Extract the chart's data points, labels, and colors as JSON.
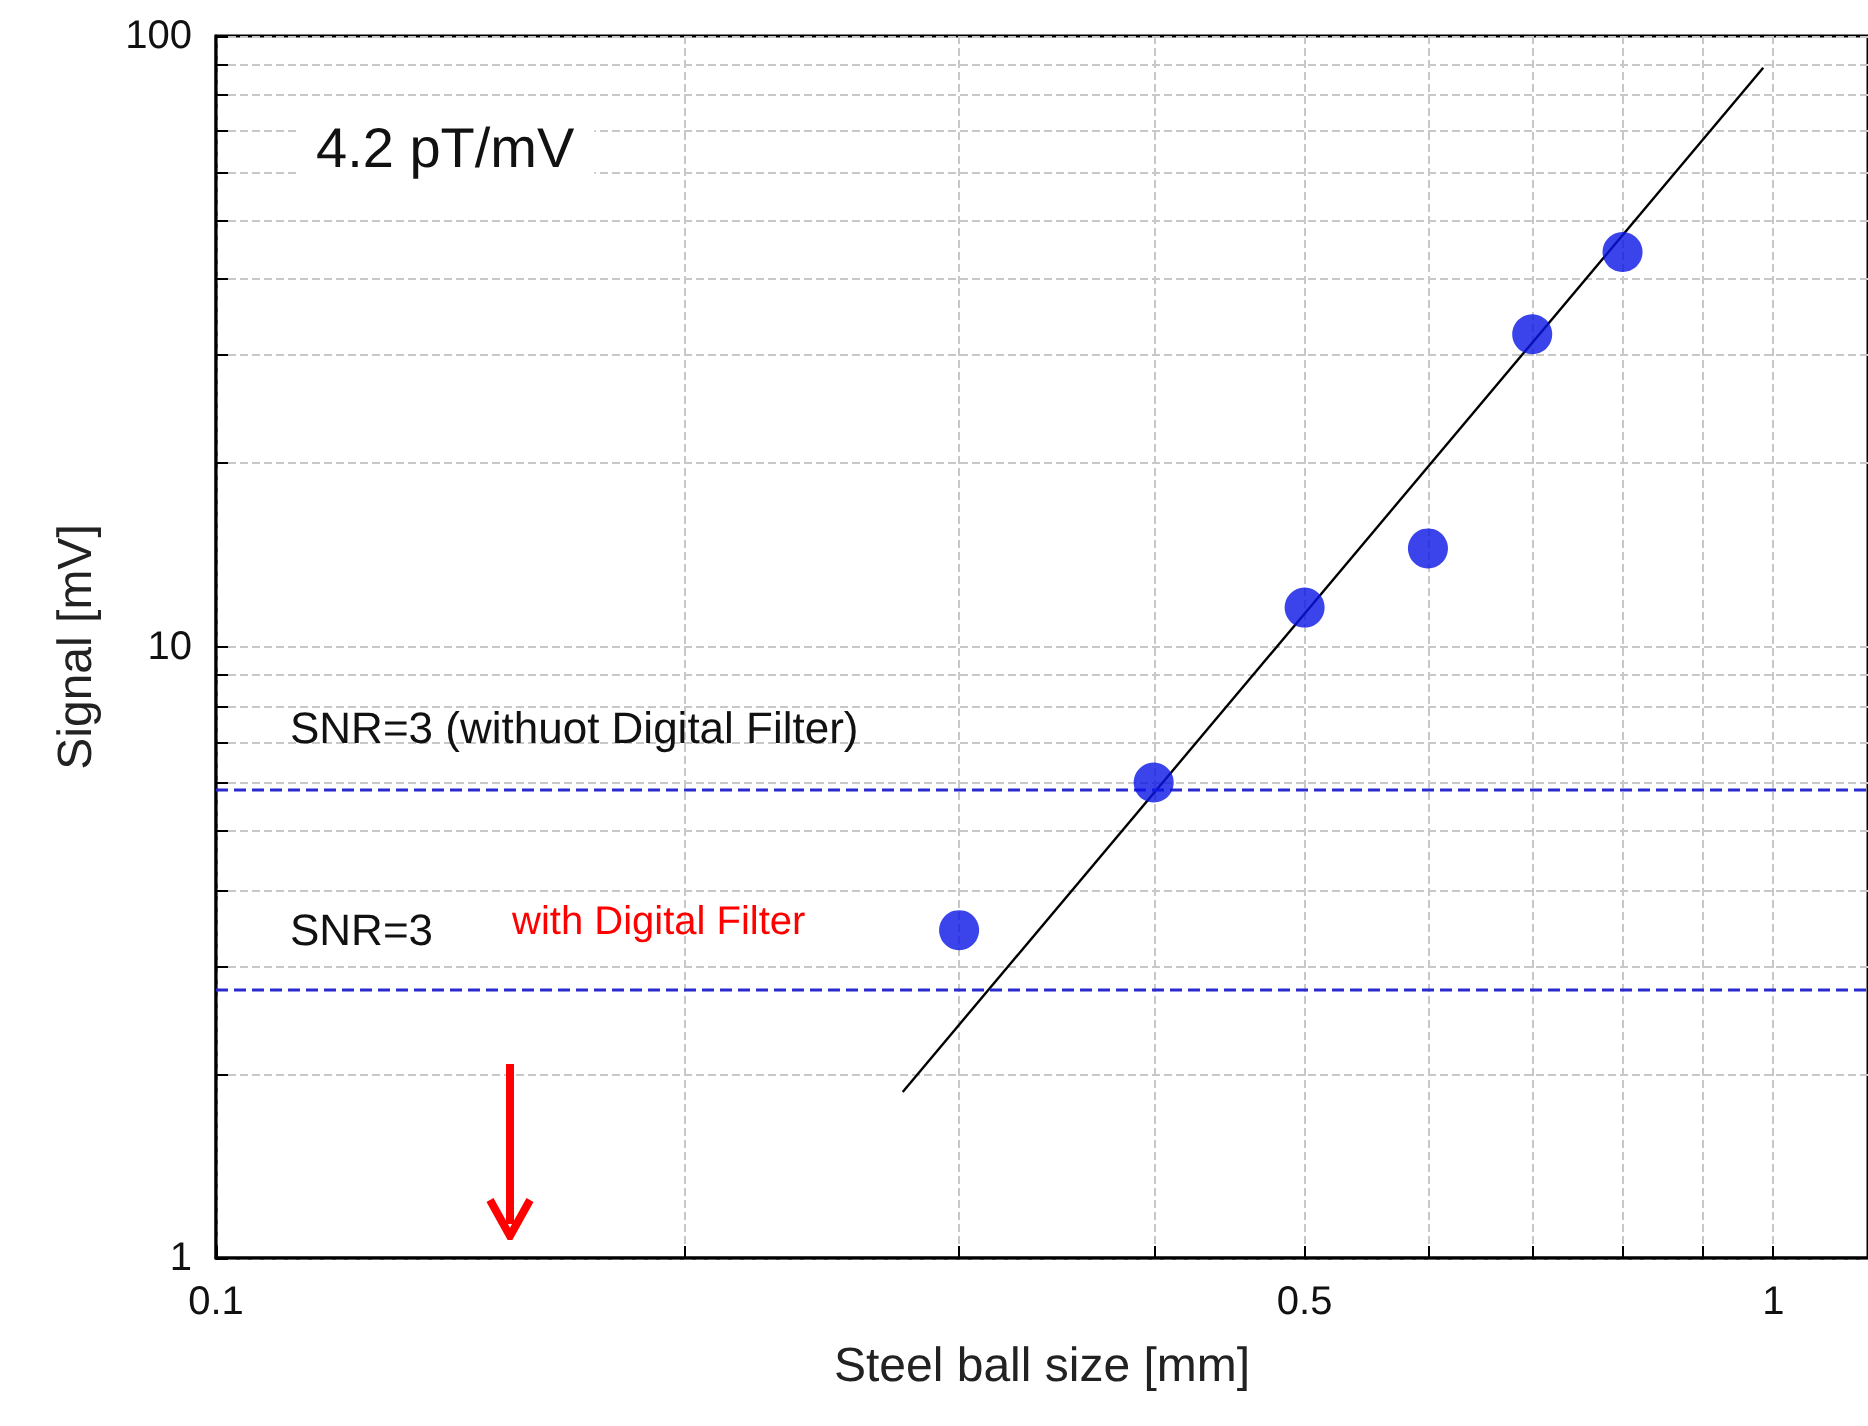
{
  "chart_data": {
    "type": "scatter",
    "xlabel": "Steel ball size [mm]",
    "ylabel": "Signal [mV]",
    "log": "xy",
    "grid": true,
    "marker": "circle",
    "xlim": [
      0.1,
      1.15
    ],
    "xticks": [
      0.1,
      {
        "value": 0.2,
        "label": null
      },
      {
        "value": 0.3,
        "label": null
      },
      {
        "value": 0.4,
        "label": null
      },
      0.5,
      {
        "value": 0.6,
        "label": null
      },
      {
        "value": 0.7,
        "label": null
      },
      {
        "value": 0.8,
        "label": null
      },
      {
        "value": 0.9,
        "label": null
      },
      1
    ],
    "ylim": [
      1,
      100
    ],
    "yticks": [
      1,
      {
        "value": 2,
        "label": null
      },
      {
        "value": 3,
        "label": null
      },
      {
        "value": 4,
        "label": null
      },
      {
        "value": 5,
        "label": null
      },
      {
        "value": 6,
        "label": null
      },
      {
        "value": 7,
        "label": null
      },
      {
        "value": 8,
        "label": null
      },
      {
        "value": 9,
        "label": null
      },
      10,
      {
        "value": 20,
        "label": null
      },
      {
        "value": 30,
        "label": null
      },
      {
        "value": 40,
        "label": null
      },
      {
        "value": 50,
        "label": null
      },
      {
        "value": 60,
        "label": null
      },
      {
        "value": 70,
        "label": null
      },
      {
        "value": 80,
        "label": null
      },
      {
        "value": 90,
        "label": null
      },
      100
    ],
    "series": [
      {
        "color": "#0a14e6",
        "x": [
          0.3,
          0.4,
          0.5,
          0.6,
          0.7,
          0.8
        ],
        "values": [
          3.44,
          6.0,
          11.6,
          14.5,
          32.5,
          44.3
        ]
      },
      {
        "type": "line",
        "color": "#000000",
        "marker": "none",
        "line_style": "solid",
        "x": [
          0.276,
          0.985
        ],
        "values": [
          1.87,
          88.7
        ]
      }
    ],
    "ref_lines": [
      {
        "axis": "y",
        "value": 5.83,
        "color": "#2a2ad0",
        "line_style": "dashed"
      },
      {
        "axis": "y",
        "value": 2.75,
        "color": "#2a2ad0",
        "line_style": "dashed"
      }
    ],
    "annotations": [
      "4.2 pT/mV",
      "SNR=3 (withuot Digital Filter)",
      "SNR=3",
      "with Digital Filter"
    ]
  }
}
